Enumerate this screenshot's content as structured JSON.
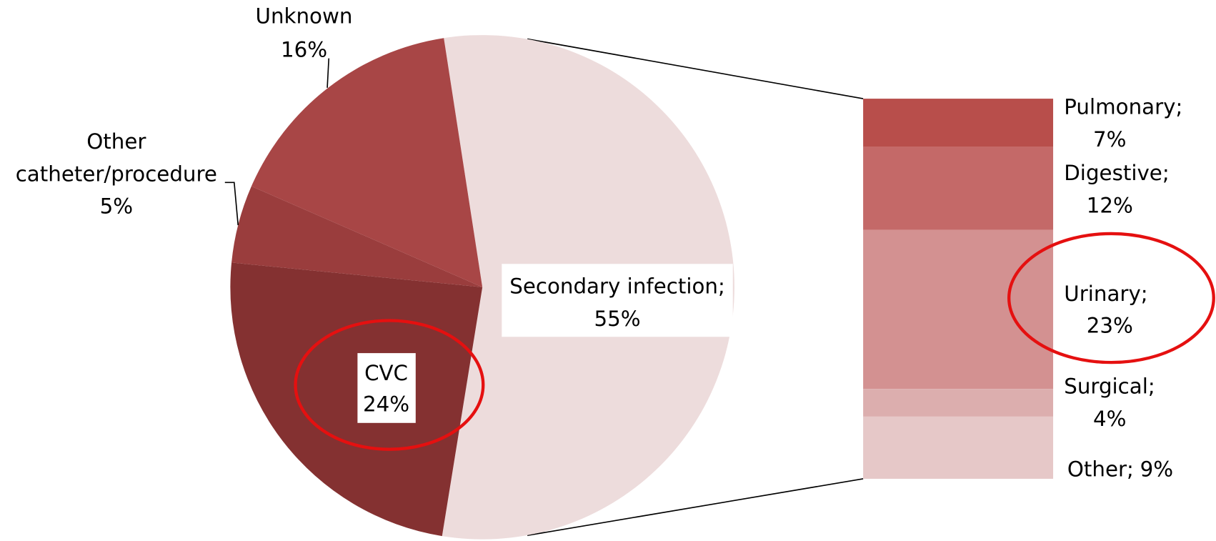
{
  "chart_data": {
    "type": "pie-of-bar",
    "categories": [
      "Secondary infection;",
      "CVC",
      "Other catheter/procedure",
      "Unknown"
    ],
    "values": [
      55,
      24,
      5,
      16
    ],
    "value_labels": [
      "55%",
      "24%",
      "5%",
      "16%"
    ],
    "colors": [
      "#eddcdc",
      "#843131",
      "#9a3d3d",
      "#a84646"
    ],
    "bar": {
      "categories": [
        "Pulmonary;",
        "Digestive;",
        "Urinary;",
        "Surgical;",
        "Other;"
      ],
      "values": [
        7,
        12,
        23,
        4,
        9
      ],
      "value_labels": [
        "7%",
        "12%",
        "23%",
        "4%",
        "9%"
      ],
      "colors": [
        "#b84e4b",
        "#c46968",
        "#d39191",
        "#dcaeae",
        "#e6c8c8"
      ]
    }
  }
}
